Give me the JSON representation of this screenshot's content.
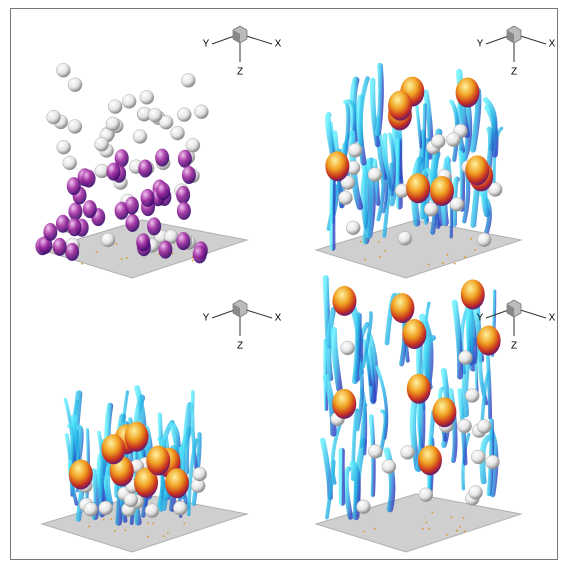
{
  "panels": [
    {
      "triad": {
        "y": "Y",
        "x": "X",
        "z": "Z"
      }
    },
    {
      "triad": {
        "y": "Y",
        "x": "X",
        "z": "Z"
      }
    },
    {
      "triad": {
        "y": "Y",
        "x": "X",
        "z": "Z"
      }
    },
    {
      "triad": {
        "y": "Y",
        "x": "X",
        "z": "Z"
      }
    }
  ]
}
